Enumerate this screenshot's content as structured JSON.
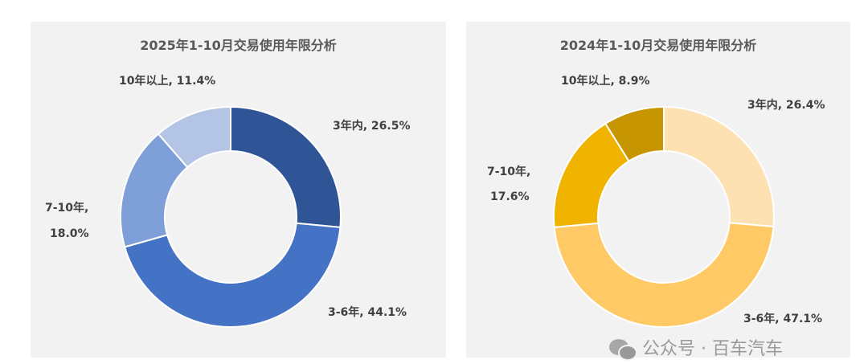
{
  "chart_data": [
    {
      "type": "pie",
      "title": "2025年1-10月交易使用年限分析",
      "categories": [
        "3年内",
        "3-6年",
        "7-10年",
        "10年以上"
      ],
      "values": [
        26.5,
        44.1,
        18.0,
        11.4
      ],
      "labels": [
        "3年内, 26.5%",
        "3-6年, 44.1%",
        "7-10年,",
        "18.0%",
        "10年以上, 11.4%"
      ],
      "colors": [
        "#2f5597",
        "#4472c4",
        "#7f9fd8",
        "#b4c4e4"
      ]
    },
    {
      "type": "pie",
      "title": "2024年1-10月交易使用年限分析",
      "categories": [
        "3年内",
        "3-6年",
        "7-10年",
        "10年以上"
      ],
      "values": [
        26.4,
        47.1,
        17.6,
        8.9
      ],
      "labels": [
        "3年内, 26.4%",
        "3-6年, 47.1%",
        "7-10年,",
        "17.6%",
        "10年以上, 8.9%"
      ],
      "colors": [
        "#fde1b3",
        "#ffca66",
        "#f0b400",
        "#c79500"
      ]
    }
  ],
  "watermark": "公众号 · 百车汽车"
}
